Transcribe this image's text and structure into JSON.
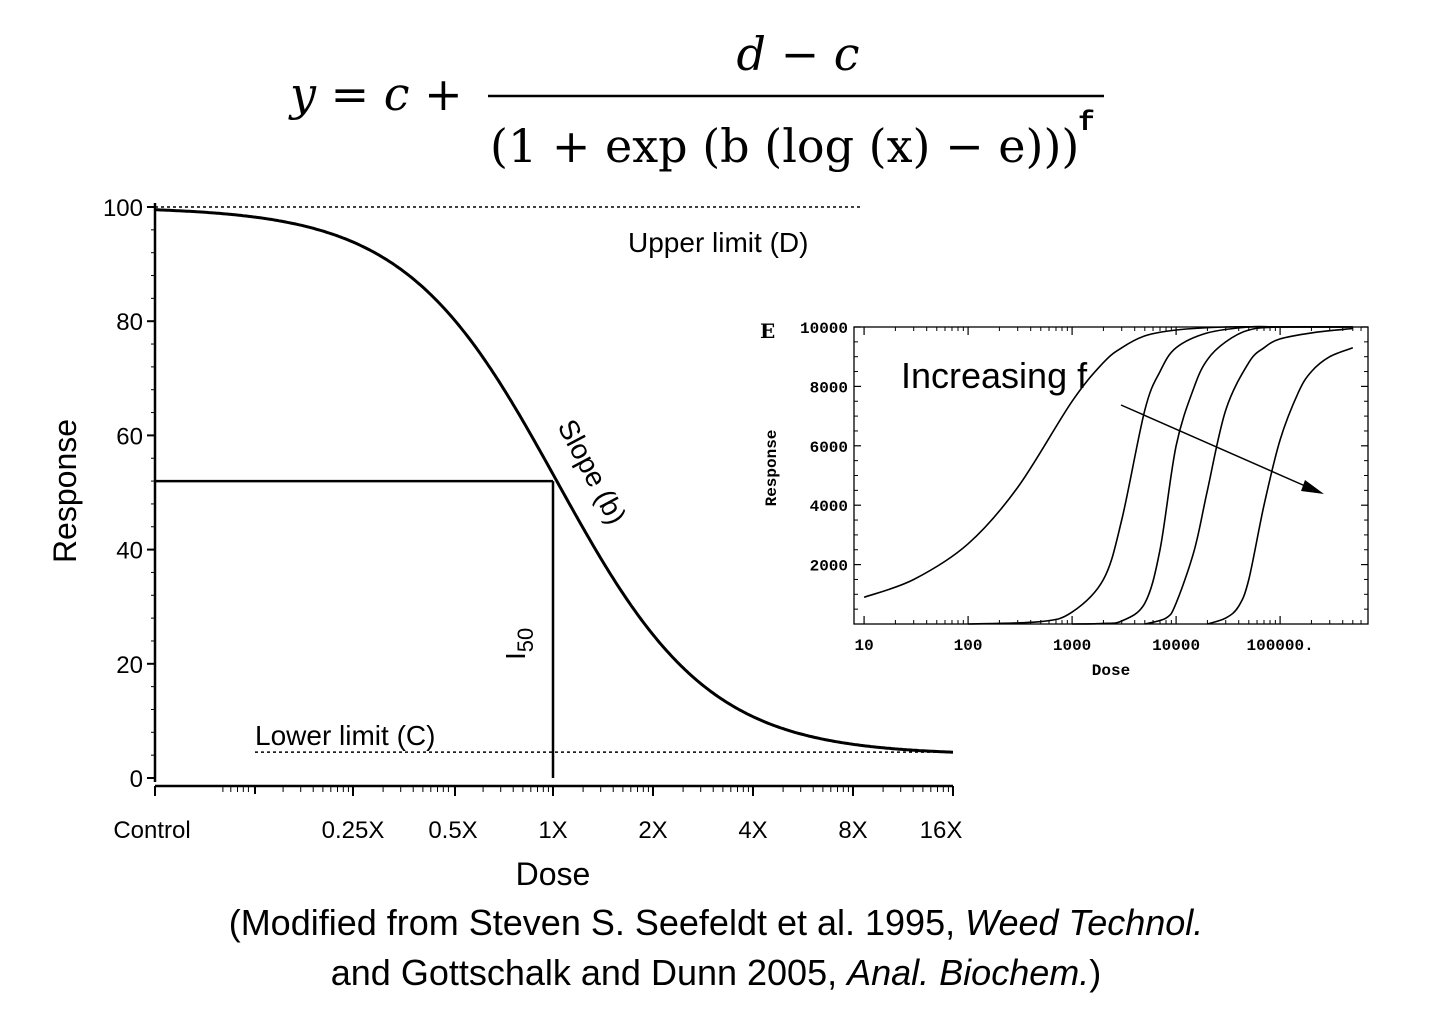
{
  "formula": {
    "lhs": "y = c +",
    "numerator": "d − c",
    "denominator": "(1 + exp (b (log (x) − e)))",
    "exponent": "f"
  },
  "caption": {
    "line1_prefix": "(Modified from Steven S. Seefeldt et al. 1995, ",
    "line1_journal": "Weed Technol.",
    "line2_prefix": "and Gottschalk and Dunn 2005, ",
    "line2_journal": "Anal. Biochem.",
    "line2_suffix": ")"
  },
  "chart_data": [
    {
      "type": "line",
      "xlabel": "Dose",
      "ylabel": "Response",
      "ylim": [
        0,
        100
      ],
      "y_ticks": [
        0,
        20,
        40,
        60,
        80,
        100
      ],
      "x_tick_labels": [
        "Control",
        "0.25X",
        "0.5X",
        "1X",
        "2X",
        "4X",
        "8X",
        "16X"
      ],
      "x_scale": "log2 dose (Control at left)",
      "upper_limit": 100,
      "lower_limit": 4,
      "i50_dose": "1X",
      "i50_response": 52,
      "series": [
        {
          "x": [
            "Control",
            "0.125X",
            "0.25X",
            "0.5X",
            "1X",
            "2X",
            "4X",
            "8X",
            "16X"
          ],
          "y": [
            100,
            99,
            93,
            80,
            52,
            22,
            9,
            5,
            4
          ]
        }
      ],
      "annotations": {
        "upper": "Upper limit (D)",
        "lower": "Lower limit (C)",
        "slope": "Slope (b)",
        "i50": "I",
        "i50_sub": "50"
      },
      "grid": false
    },
    {
      "type": "line",
      "panel_label": "E",
      "xlabel": "Dose",
      "ylabel": "Response",
      "x_scale": "log",
      "xlim": [
        10,
        500000
      ],
      "ylim": [
        0,
        10000
      ],
      "y_ticks": [
        "2000",
        "4000",
        "6000",
        "8000",
        "10000"
      ],
      "x_tick_labels": [
        "10",
        "100",
        "1000",
        "10000",
        "100000."
      ],
      "annotation": "Increasing f",
      "grid": false,
      "series": [
        {
          "x": [
            10,
            30,
            100,
            300,
            1000,
            2000,
            3000,
            5000,
            10000,
            30000,
            100000,
            500000
          ],
          "y": [
            900,
            1500,
            2700,
            4600,
            7500,
            8800,
            9300,
            9700,
            9900,
            10000,
            10000,
            10000
          ]
        },
        {
          "x": [
            100,
            500,
            1000,
            2000,
            3000,
            5000,
            7000,
            10000,
            20000,
            50000,
            100000,
            500000
          ],
          "y": [
            0,
            80,
            400,
            1500,
            3500,
            7200,
            8500,
            9300,
            9800,
            10000,
            10000,
            10000
          ]
        },
        {
          "x": [
            1000,
            2000,
            3000,
            5000,
            7000,
            10000,
            15000,
            20000,
            30000,
            50000,
            100000,
            500000
          ],
          "y": [
            0,
            20,
            100,
            700,
            2500,
            6000,
            8000,
            8900,
            9500,
            9900,
            10000,
            10000
          ]
        },
        {
          "x": [
            5000,
            8000,
            10000,
            15000,
            20000,
            30000,
            50000,
            70000,
            100000,
            200000,
            500000
          ],
          "y": [
            0,
            200,
            700,
            2500,
            4500,
            7200,
            8800,
            9300,
            9600,
            9800,
            9950
          ]
        },
        {
          "x": [
            20000,
            30000,
            40000,
            50000,
            70000,
            100000,
            150000,
            200000,
            300000,
            500000
          ],
          "y": [
            0,
            200,
            600,
            1500,
            4000,
            6200,
            7800,
            8500,
            9000,
            9300
          ]
        }
      ]
    }
  ]
}
